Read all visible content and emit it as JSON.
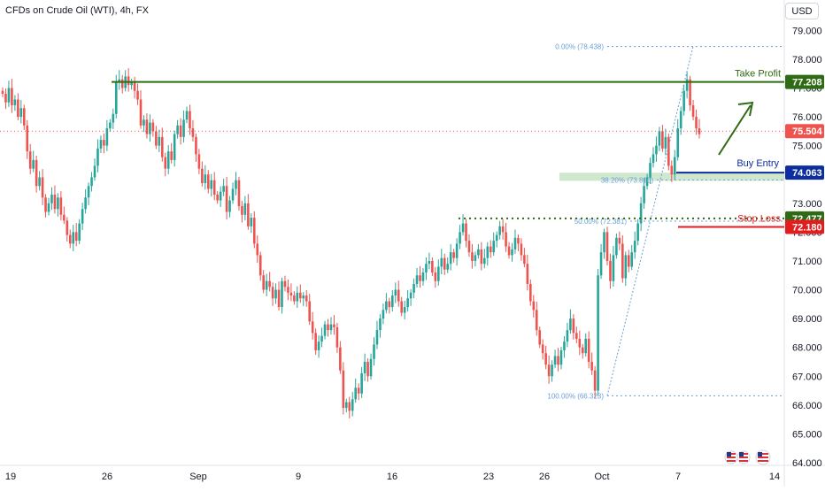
{
  "header": {
    "symbol": "CFDs on Crude Oil (WTI), 4h, FX"
  },
  "currency_button": "USD",
  "colors": {
    "up": "#26a69a",
    "down": "#ef5350",
    "take_profit": "#2e6b14",
    "buy_entry": "#0d2e9e",
    "stop_loss": "#e21d1d",
    "fib": "#6a9fd6",
    "zone": "#a7d3a4"
  },
  "chart_data": {
    "type": "candlestick",
    "y_ticks": [
      "64.000",
      "65.000",
      "66.000",
      "67.000",
      "68.000",
      "69.000",
      "70.000",
      "71.000",
      "72.000",
      "73.000",
      "74.000",
      "75.000",
      "76.000",
      "77.000",
      "78.000",
      "79.000"
    ],
    "x_ticks": [
      "19",
      "26",
      "Sep",
      "9",
      "16",
      "23",
      "26",
      "Oct",
      "7",
      "14"
    ],
    "ylim": [
      64.0,
      79.6
    ],
    "price_labels": {
      "take_profit": "77.208",
      "last": "75.504",
      "buy_entry": "74.063",
      "resistance": "72.477",
      "stop_loss": "72.180"
    },
    "annotations": {
      "take_profit": "Take Profit",
      "buy_entry": "Buy Entry",
      "stop_loss": "Stop Loss"
    },
    "fib_levels": [
      {
        "label": "0.00% (78.438)",
        "price": 78.438
      },
      {
        "label": "38.20% (73.810)",
        "price": 73.81
      },
      {
        "label": "50.00% (72.381)",
        "price": 72.381
      },
      {
        "label": "100.00% (66.323)",
        "price": 66.323
      }
    ],
    "levels": {
      "take_profit": 77.208,
      "last": 75.504,
      "buy_entry": 74.063,
      "resistance": 72.477,
      "stop_loss": 72.18
    },
    "swing": {
      "low": 66.323,
      "high": 78.438
    },
    "closes": [
      76.8,
      76.5,
      77.0,
      76.4,
      76.6,
      76.0,
      76.3,
      75.7,
      74.8,
      74.2,
      74.5,
      73.6,
      73.9,
      73.2,
      72.7,
      73.0,
      73.3,
      72.8,
      73.2,
      72.6,
      72.4,
      71.9,
      71.6,
      72.0,
      71.7,
      72.3,
      72.8,
      73.2,
      73.6,
      73.9,
      74.3,
      74.9,
      75.2,
      75.0,
      75.6,
      75.8,
      76.1,
      77.2,
      77.3,
      77.0,
      77.4,
      77.1,
      77.2,
      76.9,
      76.6,
      75.7,
      75.9,
      75.4,
      75.8,
      75.5,
      75.0,
      75.3,
      74.6,
      74.2,
      74.8,
      74.5,
      75.4,
      75.7,
      75.3,
      75.9,
      76.2,
      75.6,
      75.3,
      74.7,
      74.2,
      73.7,
      74.0,
      73.5,
      73.8,
      73.3,
      73.1,
      73.4,
      73.6,
      72.7,
      73.1,
      73.5,
      73.8,
      72.9,
      72.6,
      73.0,
      72.2,
      72.5,
      71.6,
      71.2,
      70.5,
      70.0,
      70.3,
      70.1,
      69.7,
      70.0,
      69.4,
      70.3,
      70.1,
      69.9,
      69.8,
      69.6,
      69.9,
      69.7,
      69.8,
      69.6,
      68.9,
      68.5,
      67.9,
      68.2,
      68.4,
      68.8,
      68.6,
      68.8,
      68.7,
      68.0,
      67.2,
      65.9,
      66.1,
      65.8,
      66.2,
      66.6,
      66.4,
      67.1,
      67.5,
      67.0,
      67.6,
      68.1,
      68.6,
      69.0,
      69.3,
      69.6,
      69.4,
      69.8,
      70.0,
      69.6,
      69.2,
      69.4,
      69.7,
      69.9,
      70.2,
      70.5,
      70.3,
      70.6,
      70.9,
      71.0,
      70.6,
      70.3,
      70.8,
      71.1,
      70.7,
      70.9,
      71.3,
      71.1,
      71.6,
      72.0,
      72.3,
      71.7,
      71.3,
      71.0,
      71.2,
      71.4,
      70.9,
      71.1,
      71.5,
      71.3,
      71.7,
      71.9,
      72.2,
      72.0,
      71.5,
      71.2,
      71.4,
      71.8,
      71.6,
      71.2,
      70.9,
      70.2,
      69.6,
      69.3,
      68.6,
      68.1,
      67.8,
      67.4,
      67.0,
      67.4,
      67.7,
      67.4,
      67.9,
      68.2,
      68.6,
      69.0,
      68.5,
      68.3,
      68.0,
      67.8,
      68.3,
      67.5,
      67.2,
      66.5,
      70.5,
      71.3,
      72.0,
      71.0,
      70.3,
      71.2,
      71.8,
      71.6,
      70.4,
      71.2,
      70.8,
      71.3,
      71.7,
      72.3,
      73.0,
      73.6,
      73.9,
      74.4,
      74.7,
      75.0,
      75.5,
      74.9,
      75.3,
      74.3,
      74.0,
      74.6,
      75.6,
      76.2,
      76.9,
      77.3,
      76.4,
      76.0,
      75.6,
      75.4
    ]
  }
}
